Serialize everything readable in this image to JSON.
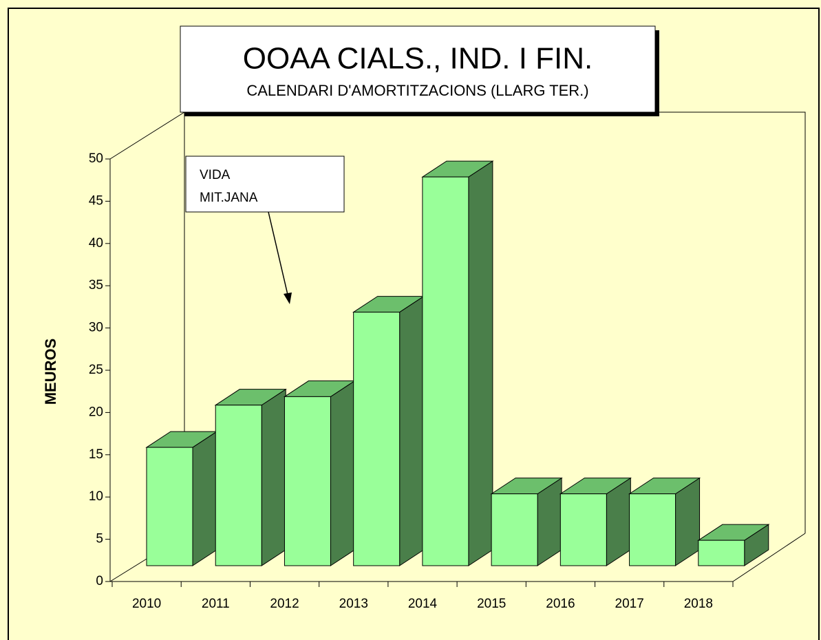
{
  "chart_data": {
    "type": "bar3d",
    "title": "OOAA CIALS., IND. I FIN.",
    "subtitle": "CALENDARI D'AMORTITZACIONS (LLARG TER.)",
    "y_label": "MEUROS",
    "annotation": [
      "VIDA",
      "MIT.JANA"
    ],
    "categories": [
      "2010",
      "2011",
      "2012",
      "2013",
      "2014",
      "2015",
      "2016",
      "2017",
      "2018"
    ],
    "values": [
      14,
      19,
      20,
      30,
      46,
      8.5,
      8.5,
      8.5,
      3
    ],
    "color": "#99ff99",
    "top_color": "#6cbf6c",
    "side_color": "#4a7f4a",
    "ylim": [
      0,
      50
    ],
    "yticks": [
      0,
      5,
      10,
      15,
      20,
      25,
      30,
      35,
      40,
      45,
      50
    ]
  }
}
